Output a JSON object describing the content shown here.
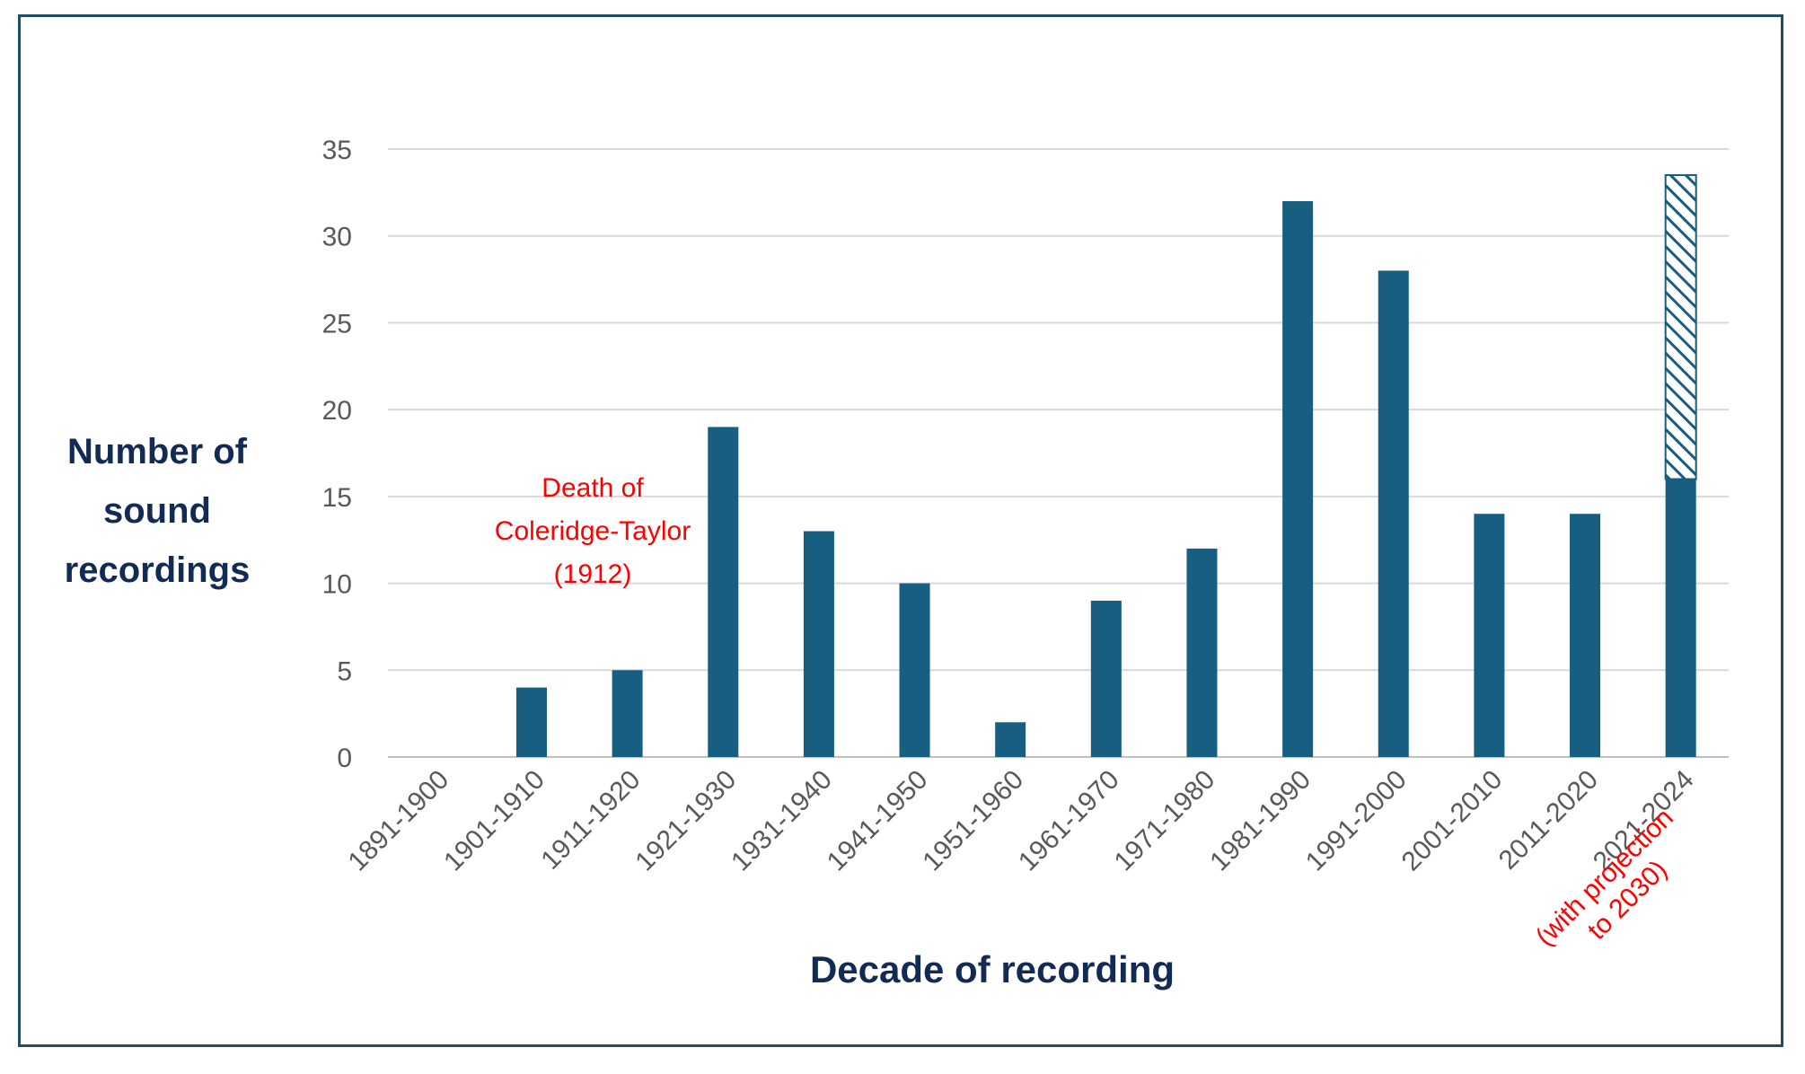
{
  "chart_data": {
    "type": "bar",
    "title": "",
    "xlabel": "Decade of recording",
    "ylabel": "Number of sound recordings",
    "ylim": [
      0,
      35
    ],
    "yticks": [
      0,
      5,
      10,
      15,
      20,
      25,
      30,
      35
    ],
    "grid": true,
    "categories": [
      "1891-1900",
      "1901-1910",
      "1911-1920",
      "1921-1930",
      "1931-1940",
      "1941-1950",
      "1951-1960",
      "1961-1970",
      "1971-1980",
      "1981-1990",
      "1991-2000",
      "2001-2010",
      "2011-2020",
      "2021-2024"
    ],
    "values": [
      0,
      4,
      5,
      19,
      13,
      10,
      2,
      9,
      12,
      32,
      28,
      14,
      14,
      16
    ],
    "projection": {
      "category": "2021-2024",
      "projected_total": 33.5,
      "note": "(with projection to 2030)"
    },
    "annotations": [
      {
        "text": "Death of Coleridge-Taylor (1912)",
        "near": "1911-1920"
      }
    ],
    "colors": {
      "bar": "#175e80",
      "annotation": "#ff0000",
      "axis_title": "#132a55",
      "tick": "#595959",
      "grid": "#d9d9d9",
      "frame": "#1f4e63"
    }
  },
  "labels": {
    "ylabel_lines": [
      "Number of",
      "sound",
      "recordings"
    ],
    "annotation_lines": [
      "Death of",
      "Coleridge-Taylor",
      "(1912)"
    ],
    "projection_lines": [
      "(with projection",
      "to 2030)"
    ]
  }
}
